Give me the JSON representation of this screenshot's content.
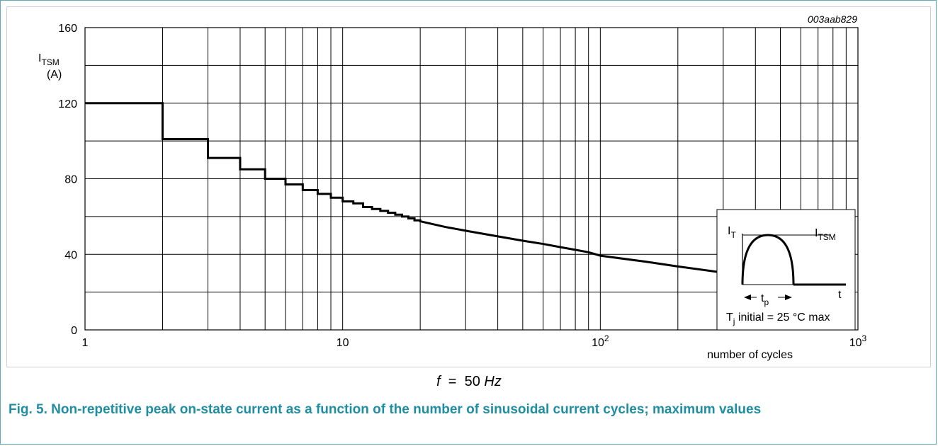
{
  "figure_code": "003aab829",
  "frequency_note": {
    "symbol": "f",
    "equals": "=",
    "value": "50",
    "unit": "Hz"
  },
  "caption": "Fig. 5. Non-repetitive peak on-state current as a function of the number of sinusoidal current cycles; maximum values",
  "inset": {
    "it_label": "I",
    "it_sub": "T",
    "itsm_label": "I",
    "itsm_sub": "TSM",
    "t_label": "t",
    "tp_label": "t",
    "tp_sub": "p",
    "tj_label": "T",
    "tj_sub": "j",
    "tj_text": " initial = 25 °C max"
  },
  "chart_data": {
    "type": "line",
    "title": "",
    "xlabel": "number of cycles",
    "ylabel": "I",
    "ylabel_sub": "TSM",
    "ylabel_unit": "(A)",
    "x_scale": "log",
    "xlim": [
      1,
      1000
    ],
    "ylim": [
      0,
      160
    ],
    "grid": true,
    "x_ticks": [
      {
        "value": 1,
        "base": "1",
        "exp": ""
      },
      {
        "value": 10,
        "base": "10",
        "exp": ""
      },
      {
        "value": 100,
        "base": "10",
        "exp": "2"
      },
      {
        "value": 1000,
        "base": "10",
        "exp": "3"
      }
    ],
    "y_ticks": [
      0,
      40,
      80,
      120,
      160
    ],
    "series": [
      {
        "step_points": [
          [
            1,
            120
          ],
          [
            2,
            101
          ],
          [
            3,
            91
          ],
          [
            4,
            85
          ],
          [
            5,
            80
          ],
          [
            6,
            77
          ],
          [
            7,
            74
          ],
          [
            8,
            72
          ],
          [
            9,
            70
          ],
          [
            10,
            68
          ],
          [
            11,
            67
          ],
          [
            12,
            65
          ],
          [
            13,
            64
          ],
          [
            14,
            63
          ],
          [
            15,
            62
          ],
          [
            16,
            61
          ],
          [
            17,
            60
          ],
          [
            18,
            59
          ],
          [
            19,
            58
          ],
          [
            20,
            57.5
          ]
        ],
        "smooth_points": [
          [
            20,
            57.5
          ],
          [
            25,
            54.5
          ],
          [
            30,
            52.5
          ],
          [
            40,
            49.5
          ],
          [
            50,
            47.2
          ],
          [
            60,
            45.5
          ],
          [
            70,
            43.8
          ],
          [
            80,
            42.4
          ],
          [
            90,
            41.1
          ],
          [
            100,
            39.3
          ],
          [
            150,
            36.1
          ],
          [
            200,
            33.6
          ],
          [
            300,
            30.3
          ],
          [
            350,
            29.2
          ]
        ]
      }
    ]
  }
}
